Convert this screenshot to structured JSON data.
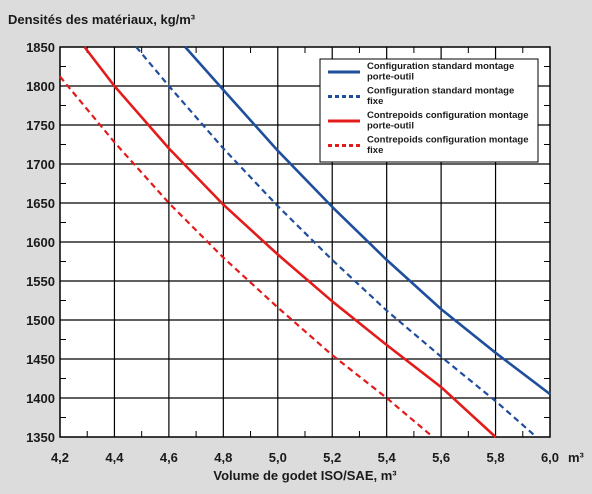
{
  "chart_data": {
    "type": "line",
    "title": "Densités des matériaux, kg/m³",
    "xlabel": "Volume de godet ISO/SAE, m³",
    "x_unit": "m³",
    "ylabel": "",
    "xlim": [
      4.2,
      6.0
    ],
    "ylim": [
      1350,
      1850
    ],
    "x_ticks": [
      "4,2",
      "4,4",
      "4,6",
      "4,8",
      "5,0",
      "5,2",
      "5,4",
      "5,6",
      "5,8",
      "6,0"
    ],
    "y_ticks": [
      "1850",
      "1800",
      "1750",
      "1700",
      "1650",
      "1600",
      "1550",
      "1500",
      "1450",
      "1400",
      "1350"
    ],
    "grid": true,
    "legend_position": "top-right",
    "series": [
      {
        "name": "Configuration standard montage porte-outil",
        "color": "#1f4e9c",
        "style": "solid",
        "points": [
          [
            4.66,
            1850
          ],
          [
            4.8,
            1795
          ],
          [
            5.0,
            1717
          ],
          [
            5.2,
            1645
          ],
          [
            5.4,
            1577
          ],
          [
            5.6,
            1514
          ],
          [
            5.8,
            1458
          ],
          [
            6.0,
            1405
          ]
        ]
      },
      {
        "name": "Configuration standard montage fixe",
        "color": "#1f4e9c",
        "style": "dashed",
        "points": [
          [
            4.48,
            1850
          ],
          [
            4.6,
            1800
          ],
          [
            4.8,
            1720
          ],
          [
            5.0,
            1646
          ],
          [
            5.2,
            1577
          ],
          [
            5.4,
            1512
          ],
          [
            5.6,
            1453
          ],
          [
            5.8,
            1396
          ],
          [
            5.95,
            1350
          ]
        ]
      },
      {
        "name": "Contrepoids configuration montage porte-outil",
        "color": "#e31b1b",
        "style": "solid",
        "points": [
          [
            4.29,
            1850
          ],
          [
            4.4,
            1800
          ],
          [
            4.6,
            1720
          ],
          [
            4.8,
            1648
          ],
          [
            5.0,
            1584
          ],
          [
            5.2,
            1524
          ],
          [
            5.4,
            1468
          ],
          [
            5.6,
            1414
          ],
          [
            5.8,
            1350
          ]
        ]
      },
      {
        "name": "Contrepoids configuration montage fixe",
        "color": "#e31b1b",
        "style": "dashed",
        "points": [
          [
            4.2,
            1812
          ],
          [
            4.4,
            1728
          ],
          [
            4.6,
            1650
          ],
          [
            4.8,
            1580
          ],
          [
            5.0,
            1516
          ],
          [
            5.2,
            1455
          ],
          [
            5.4,
            1400
          ],
          [
            5.57,
            1350
          ]
        ]
      }
    ]
  }
}
